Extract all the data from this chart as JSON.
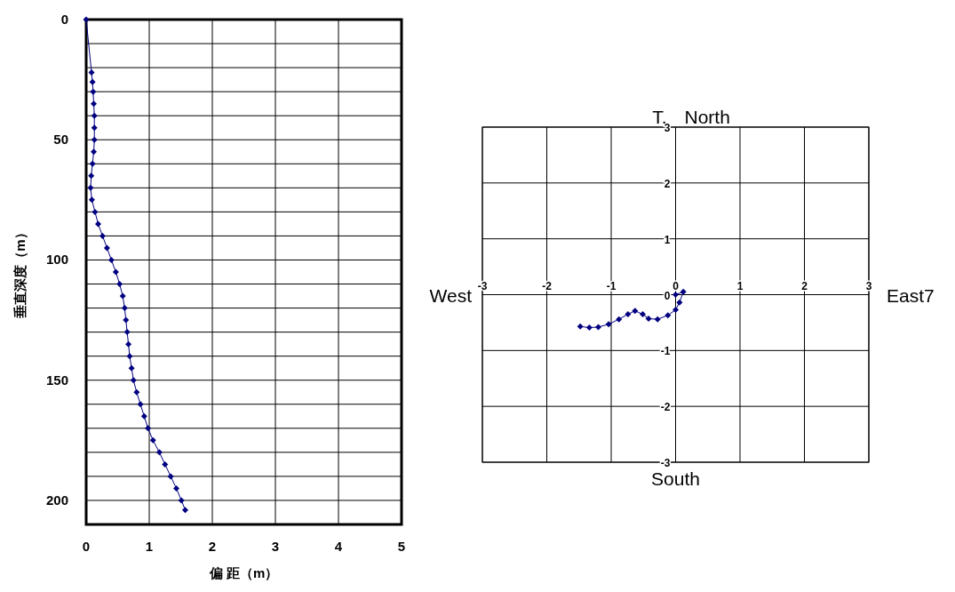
{
  "chart_data": [
    {
      "type": "line",
      "xlabel": "偏 距（m）",
      "ylabel": "垂直深度（m）",
      "grid": true,
      "marker": "diamond",
      "line_style": "solid",
      "xlim": [
        0,
        5
      ],
      "xticks": [
        0,
        1,
        2,
        3,
        4,
        5
      ],
      "ylim": [
        210,
        0
      ],
      "yticks": [
        0,
        {
          "value": 10,
          "label": null
        },
        {
          "value": 20,
          "label": null
        },
        {
          "value": 30,
          "label": null
        },
        {
          "value": 40,
          "label": null
        },
        50,
        {
          "value": 60,
          "label": null
        },
        {
          "value": 70,
          "label": null
        },
        {
          "value": 80,
          "label": null
        },
        {
          "value": 90,
          "label": null
        },
        100,
        {
          "value": 110,
          "label": null
        },
        {
          "value": 120,
          "label": null
        },
        {
          "value": 130,
          "label": null
        },
        {
          "value": 140,
          "label": null
        },
        150,
        {
          "value": 160,
          "label": null
        },
        {
          "value": 170,
          "label": null
        },
        {
          "value": 180,
          "label": null
        },
        {
          "value": 190,
          "label": null
        },
        200
      ],
      "x": [
        0,
        0.085,
        0.1,
        0.11,
        0.12,
        0.13,
        0.13,
        0.13,
        0.12,
        0.1,
        0.08,
        0.07,
        0.09,
        0.14,
        0.19,
        0.26,
        0.33,
        0.4,
        0.47,
        0.53,
        0.58,
        0.61,
        0.63,
        0.65,
        0.67,
        0.69,
        0.72,
        0.75,
        0.8,
        0.86,
        0.92,
        0.98,
        1.06,
        1.16,
        1.25,
        1.34,
        1.43,
        1.51,
        1.57
      ],
      "series": [
        {
          "color": "#000080",
          "values": [
            0,
            22,
            26,
            30,
            35,
            40,
            45,
            50,
            55,
            60,
            65,
            70,
            75,
            80,
            85,
            90,
            95,
            100,
            105,
            110,
            115,
            120,
            125,
            130,
            135,
            140,
            145,
            150,
            155,
            160,
            165,
            170,
            175,
            180,
            185,
            190,
            195,
            200,
            204
          ]
        }
      ]
    },
    {
      "type": "line",
      "title": "T.",
      "annotations": [
        "North",
        "South",
        "West",
        "East7"
      ],
      "grid": true,
      "marker": "diamond",
      "line_style": "solid",
      "xlim": [
        -3,
        3
      ],
      "xticks": [
        -3,
        -2,
        -1,
        0,
        1,
        2,
        3
      ],
      "ylim": [
        -3,
        3
      ],
      "yticks": [
        -3,
        -2,
        -1,
        0,
        1,
        2,
        3
      ],
      "x": [
        0,
        0.12,
        0.06,
        0,
        -0.12,
        -0.28,
        -0.42,
        -0.51,
        -0.63,
        -0.74,
        -0.88,
        -1.04,
        -1.2,
        -1.34,
        -1.48
      ],
      "series": [
        {
          "color": "#000080",
          "values": [
            0,
            0.05,
            -0.14,
            -0.27,
            -0.37,
            -0.44,
            -0.43,
            -0.35,
            -0.29,
            -0.35,
            -0.44,
            -0.53,
            -0.58,
            -0.59,
            -0.57
          ]
        }
      ]
    }
  ]
}
